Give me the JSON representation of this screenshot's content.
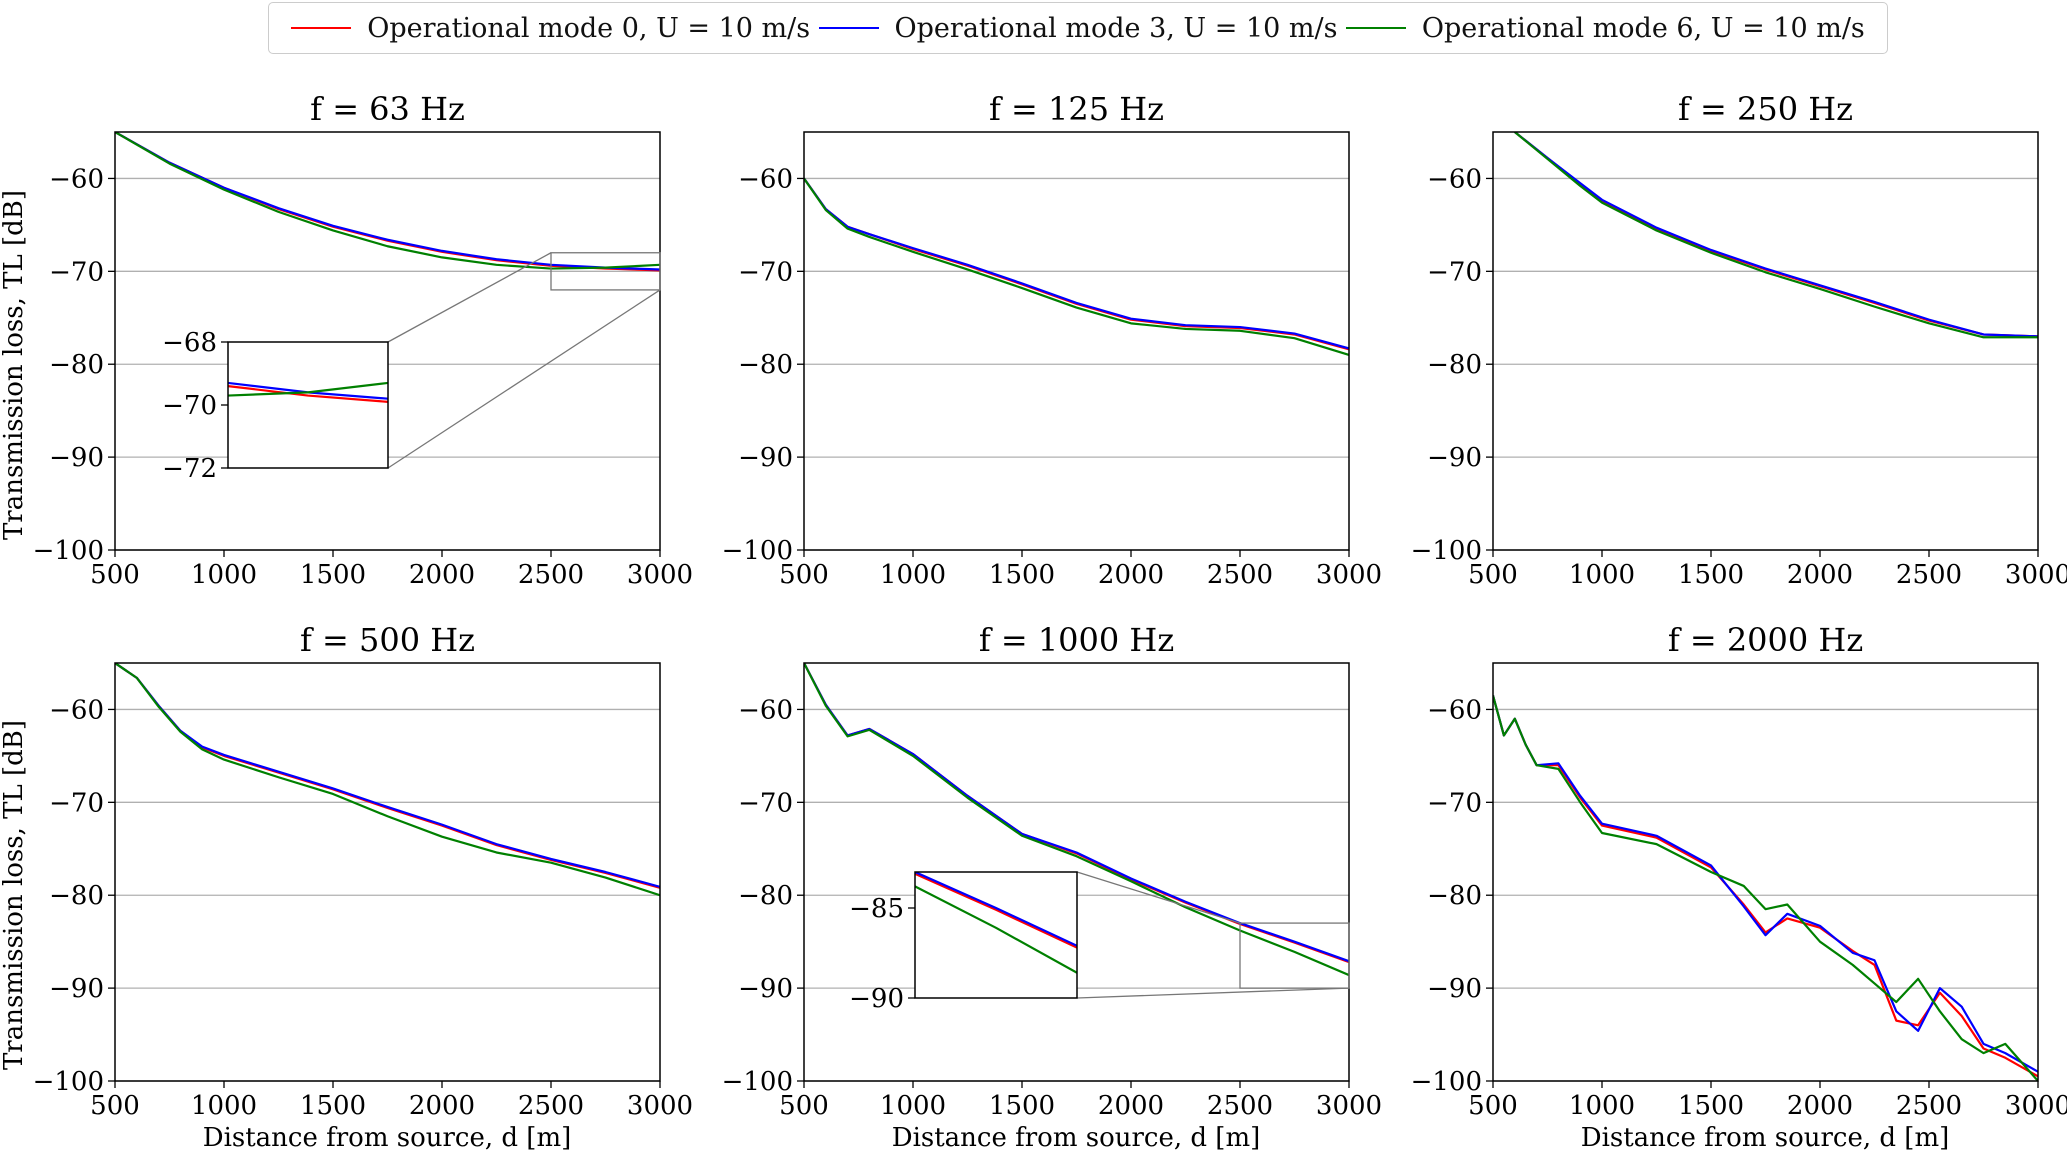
{
  "legend": {
    "entries": [
      {
        "label": "Operational mode 0, U = 10 m/s",
        "color": "#ff0000"
      },
      {
        "label": "Operational mode 3, U = 10 m/s",
        "color": "#0000ff"
      },
      {
        "label": "Operational mode 6, U = 10 m/s",
        "color": "#008000"
      }
    ]
  },
  "axes_labels": {
    "ylabel": "Transmission loss, TL [dB]",
    "xlabel": "Distance from source, d [m]"
  },
  "chart_data": [
    {
      "type": "line",
      "title": "f = 63 Hz",
      "xlim": [
        500,
        3000
      ],
      "ylim": [
        -100,
        -55
      ],
      "xticks": [
        500,
        1000,
        1500,
        2000,
        2500,
        3000
      ],
      "yticks": [
        -60,
        -70,
        -80,
        -90,
        -100
      ],
      "grid": "horizontal",
      "x": [
        500,
        750,
        1000,
        1250,
        1500,
        1750,
        2000,
        2250,
        2500,
        2750,
        3000
      ],
      "series": [
        {
          "name": "Operational mode 0, U = 10 m/s",
          "values": [
            -55.0,
            -58.3,
            -61.0,
            -63.3,
            -65.2,
            -66.7,
            -67.9,
            -68.8,
            -69.4,
            -69.7,
            -69.9
          ]
        },
        {
          "name": "Operational mode 3, U = 10 m/s",
          "values": [
            -55.0,
            -58.3,
            -61.0,
            -63.2,
            -65.1,
            -66.6,
            -67.8,
            -68.7,
            -69.3,
            -69.6,
            -69.8
          ]
        },
        {
          "name": "Operational mode 6, U = 10 m/s",
          "values": [
            -55.0,
            -58.4,
            -61.2,
            -63.6,
            -65.6,
            -67.3,
            -68.5,
            -69.3,
            -69.7,
            -69.6,
            -69.3
          ]
        }
      ],
      "inset": {
        "xlim": [
          2500,
          3000
        ],
        "ylim": [
          -72,
          -68
        ],
        "yticks": [
          -68,
          -70,
          -72
        ]
      }
    },
    {
      "type": "line",
      "title": "f = 125 Hz",
      "xlim": [
        500,
        3000
      ],
      "ylim": [
        -100,
        -55
      ],
      "xticks": [
        500,
        1000,
        1500,
        2000,
        2500,
        3000
      ],
      "yticks": [
        -60,
        -70,
        -80,
        -90,
        -100
      ],
      "grid": "horizontal",
      "x": [
        500,
        600,
        700,
        800,
        1000,
        1250,
        1500,
        1750,
        2000,
        2250,
        2500,
        2750,
        3000
      ],
      "series": [
        {
          "name": "Operational mode 0, U = 10 m/s",
          "values": [
            -60.0,
            -63.3,
            -65.2,
            -66.0,
            -67.6,
            -69.4,
            -71.4,
            -73.5,
            -75.2,
            -75.9,
            -76.1,
            -76.8,
            -78.4
          ]
        },
        {
          "name": "Operational mode 3, U = 10 m/s",
          "values": [
            -60.0,
            -63.3,
            -65.2,
            -66.0,
            -67.5,
            -69.3,
            -71.3,
            -73.4,
            -75.1,
            -75.8,
            -76.0,
            -76.7,
            -78.3
          ]
        },
        {
          "name": "Operational mode 6, U = 10 m/s",
          "values": [
            -60.0,
            -63.4,
            -65.4,
            -66.3,
            -67.9,
            -69.8,
            -71.8,
            -73.9,
            -75.6,
            -76.2,
            -76.4,
            -77.2,
            -79.0
          ]
        }
      ]
    },
    {
      "type": "line",
      "title": "f = 250 Hz",
      "xlim": [
        500,
        3000
      ],
      "ylim": [
        -100,
        -55
      ],
      "xticks": [
        500,
        1000,
        1500,
        2000,
        2500,
        3000
      ],
      "yticks": [
        -60,
        -70,
        -80,
        -90,
        -100
      ],
      "grid": "horizontal",
      "x": [
        600,
        750,
        900,
        1000,
        1250,
        1500,
        1750,
        2000,
        2250,
        2500,
        2750,
        3000
      ],
      "series": [
        {
          "name": "Operational mode 0, U = 10 m/s",
          "values": [
            -55.0,
            -57.8,
            -60.6,
            -62.4,
            -65.4,
            -67.8,
            -69.8,
            -71.6,
            -73.4,
            -75.3,
            -76.8,
            -77.0
          ]
        },
        {
          "name": "Operational mode 3, U = 10 m/s",
          "values": [
            -55.0,
            -57.8,
            -60.5,
            -62.3,
            -65.3,
            -67.7,
            -69.7,
            -71.5,
            -73.3,
            -75.2,
            -76.8,
            -77.0
          ]
        },
        {
          "name": "Operational mode 6, U = 10 m/s",
          "values": [
            -55.0,
            -57.9,
            -60.8,
            -62.6,
            -65.6,
            -68.0,
            -70.1,
            -71.9,
            -73.8,
            -75.6,
            -77.1,
            -77.1
          ]
        }
      ]
    },
    {
      "type": "line",
      "title": "f = 500 Hz",
      "xlim": [
        500,
        3000
      ],
      "ylim": [
        -100,
        -55
      ],
      "xticks": [
        500,
        1000,
        1500,
        2000,
        2500,
        3000
      ],
      "yticks": [
        -60,
        -70,
        -80,
        -90,
        -100
      ],
      "grid": "horizontal",
      "x": [
        500,
        600,
        700,
        800,
        900,
        1000,
        1250,
        1500,
        1750,
        2000,
        2250,
        2500,
        2750,
        3000
      ],
      "series": [
        {
          "name": "Operational mode 0, U = 10 m/s",
          "values": [
            -55.0,
            -56.6,
            -59.6,
            -62.3,
            -64.1,
            -65.0,
            -66.8,
            -68.6,
            -70.6,
            -72.5,
            -74.6,
            -76.2,
            -77.6,
            -79.2
          ]
        },
        {
          "name": "Operational mode 3, U = 10 m/s",
          "values": [
            -55.0,
            -56.6,
            -59.6,
            -62.3,
            -64.0,
            -64.9,
            -66.7,
            -68.5,
            -70.5,
            -72.4,
            -74.5,
            -76.1,
            -77.5,
            -79.1
          ]
        },
        {
          "name": "Operational mode 6, U = 10 m/s",
          "values": [
            -55.0,
            -56.6,
            -59.7,
            -62.4,
            -64.3,
            -65.4,
            -67.3,
            -69.1,
            -71.5,
            -73.7,
            -75.4,
            -76.5,
            -78.1,
            -80.0
          ]
        }
      ]
    },
    {
      "type": "line",
      "title": "f = 1000 Hz",
      "xlim": [
        500,
        3000
      ],
      "ylim": [
        -100,
        -55
      ],
      "xticks": [
        500,
        1000,
        1500,
        2000,
        2500,
        3000
      ],
      "yticks": [
        -60,
        -70,
        -80,
        -90,
        -100
      ],
      "grid": "horizontal",
      "x": [
        500,
        600,
        700,
        800,
        1000,
        1250,
        1500,
        1750,
        2000,
        2250,
        2500,
        2750,
        3000
      ],
      "series": [
        {
          "name": "Operational mode 0, U = 10 m/s",
          "values": [
            -55.0,
            -59.5,
            -62.8,
            -62.1,
            -64.8,
            -69.3,
            -73.4,
            -75.5,
            -78.3,
            -80.8,
            -83.1,
            -85.1,
            -87.2
          ]
        },
        {
          "name": "Operational mode 3, U = 10 m/s",
          "values": [
            -55.0,
            -59.5,
            -62.8,
            -62.1,
            -64.8,
            -69.3,
            -73.4,
            -75.4,
            -78.2,
            -80.7,
            -83.0,
            -85.0,
            -87.1
          ]
        },
        {
          "name": "Operational mode 6, U = 10 m/s",
          "values": [
            -55.0,
            -59.6,
            -62.9,
            -62.2,
            -65.0,
            -69.5,
            -73.6,
            -75.8,
            -78.5,
            -81.3,
            -83.8,
            -86.1,
            -88.6
          ]
        }
      ],
      "inset": {
        "xlim": [
          2500,
          3000
        ],
        "ylim": [
          -90,
          -83
        ],
        "yticks": [
          -85,
          -90
        ]
      }
    },
    {
      "type": "line",
      "title": "f = 2000 Hz",
      "xlim": [
        500,
        3000
      ],
      "ylim": [
        -100,
        -55
      ],
      "xticks": [
        500,
        1000,
        1500,
        2000,
        2500,
        3000
      ],
      "yticks": [
        -60,
        -70,
        -80,
        -90,
        -100
      ],
      "grid": "horizontal",
      "x": [
        500,
        550,
        600,
        650,
        700,
        800,
        900,
        1000,
        1250,
        1500,
        1650,
        1750,
        1850,
        2000,
        2150,
        2250,
        2350,
        2450,
        2550,
        2650,
        2750,
        2850,
        3000
      ],
      "series": [
        {
          "name": "Operational mode 0, U = 10 m/s",
          "values": [
            -58.5,
            -62.8,
            -61.0,
            -63.8,
            -66.0,
            -66.0,
            -69.5,
            -72.5,
            -73.8,
            -77.0,
            -81.0,
            -84.0,
            -82.5,
            -83.5,
            -86.0,
            -87.5,
            -93.5,
            -94.0,
            -90.5,
            -93.0,
            -96.5,
            -97.5,
            -99.5
          ]
        },
        {
          "name": "Operational mode 3, U = 10 m/s",
          "values": [
            -58.5,
            -62.8,
            -61.0,
            -63.8,
            -66.0,
            -65.8,
            -69.3,
            -72.3,
            -73.6,
            -76.8,
            -81.2,
            -84.3,
            -82.0,
            -83.3,
            -86.2,
            -87.0,
            -92.5,
            -94.6,
            -90.0,
            -92.0,
            -96.0,
            -97.0,
            -99.0
          ]
        },
        {
          "name": "Operational mode 6, U = 10 m/s",
          "values": [
            -58.5,
            -62.8,
            -61.0,
            -63.8,
            -66.0,
            -66.4,
            -70.0,
            -73.3,
            -74.5,
            -77.5,
            -79.0,
            -81.5,
            -81.0,
            -85.0,
            -87.5,
            -89.5,
            -91.5,
            -89.0,
            -92.5,
            -95.5,
            -97.0,
            -96.0,
            -100.0
          ]
        }
      ]
    }
  ]
}
